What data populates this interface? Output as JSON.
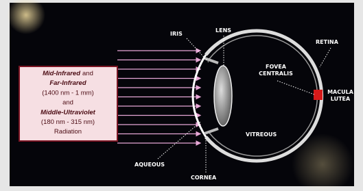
{
  "labels": {
    "iris": "IRIS",
    "lens": "LENS",
    "retina": "RETINA",
    "fovea": [
      "FOVEA",
      "CENTRALIS"
    ],
    "macula": [
      "MACULA",
      "LUTEA"
    ],
    "vitreous": "VITREOUS",
    "aqueous": "AQUEOUS",
    "cornea": "CORNEA"
  },
  "radiation_box": {
    "lines": [
      [
        "Mid-Infrared",
        "and"
      ],
      [
        "Far-Infrared"
      ],
      [
        "(1400 nm - 1 mm)"
      ],
      [
        "and"
      ],
      [
        "Middle-Ultraviolet"
      ],
      [
        "(180 nm - 315 nm)"
      ],
      [
        "Radiation"
      ]
    ]
  }
}
